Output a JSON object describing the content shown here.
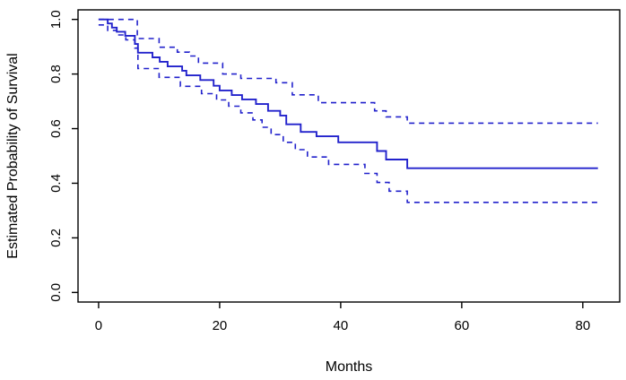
{
  "figure": {
    "background": "#ffffff",
    "line_color": "#2222cc",
    "axis_color": "#000000"
  },
  "chart_data": {
    "type": "line",
    "subtype": "kaplan-meier-step-function",
    "title": "",
    "xlabel": "Months",
    "ylabel": "Estimated Probability of Survival",
    "xlim": [
      -3.4,
      86.1
    ],
    "ylim": [
      -0.035,
      1.035
    ],
    "x_ticks": [
      "0",
      "20",
      "40",
      "60",
      "80"
    ],
    "x_tick_values": [
      0,
      20,
      40,
      60,
      80
    ],
    "y_ticks": [
      "0.0",
      "0.2",
      "0.4",
      "0.6",
      "0.8",
      "1.0"
    ],
    "y_tick_values": [
      0.0,
      0.2,
      0.4,
      0.6,
      0.8,
      1.0
    ],
    "grid": false,
    "legend": null,
    "series": [
      {
        "name": "survival-estimate",
        "style": "solid",
        "color": "#2222cc",
        "points": [
          [
            0,
            1.0
          ],
          [
            1.5,
            0.985
          ],
          [
            2.2,
            0.97
          ],
          [
            3.0,
            0.955
          ],
          [
            4.4,
            0.94
          ],
          [
            6.0,
            0.91
          ],
          [
            6.5,
            0.878
          ],
          [
            8.9,
            0.861
          ],
          [
            10.1,
            0.845
          ],
          [
            11.4,
            0.828
          ],
          [
            13.8,
            0.812
          ],
          [
            14.5,
            0.795
          ],
          [
            16.8,
            0.778
          ],
          [
            19.0,
            0.757
          ],
          [
            20.0,
            0.74
          ],
          [
            22.0,
            0.723
          ],
          [
            23.7,
            0.707
          ],
          [
            26.0,
            0.69
          ],
          [
            28.0,
            0.665
          ],
          [
            30.0,
            0.648
          ],
          [
            31.0,
            0.616
          ],
          [
            33.4,
            0.588
          ],
          [
            36.0,
            0.572
          ],
          [
            39.6,
            0.55
          ],
          [
            46.0,
            0.518
          ],
          [
            47.5,
            0.487
          ],
          [
            51.0,
            0.455
          ],
          [
            82.5,
            0.455
          ]
        ]
      },
      {
        "name": "upper-95-confidence-band",
        "style": "dashed",
        "color": "#2222cc",
        "points": [
          [
            0,
            1.0
          ],
          [
            6.4,
            0.93
          ],
          [
            10.0,
            0.898
          ],
          [
            13.0,
            0.88
          ],
          [
            15.0,
            0.866
          ],
          [
            16.5,
            0.84
          ],
          [
            20.5,
            0.8
          ],
          [
            23.5,
            0.784
          ],
          [
            29.3,
            0.768
          ],
          [
            32.0,
            0.724
          ],
          [
            36.3,
            0.695
          ],
          [
            45.6,
            0.665
          ],
          [
            47.5,
            0.643
          ],
          [
            51.0,
            0.62
          ],
          [
            82.5,
            0.62
          ]
        ]
      },
      {
        "name": "lower-95-confidence-band",
        "style": "dashed",
        "color": "#2222cc",
        "points": [
          [
            0,
            0.98
          ],
          [
            1.5,
            0.96
          ],
          [
            3.0,
            0.943
          ],
          [
            4.5,
            0.925
          ],
          [
            6.0,
            0.895
          ],
          [
            6.5,
            0.82
          ],
          [
            10.0,
            0.788
          ],
          [
            13.5,
            0.755
          ],
          [
            17.0,
            0.728
          ],
          [
            19.5,
            0.705
          ],
          [
            21.5,
            0.682
          ],
          [
            23.5,
            0.658
          ],
          [
            25.5,
            0.632
          ],
          [
            27.0,
            0.605
          ],
          [
            28.5,
            0.578
          ],
          [
            30.5,
            0.55
          ],
          [
            32.5,
            0.523
          ],
          [
            34.5,
            0.496
          ],
          [
            38.0,
            0.469
          ],
          [
            44.0,
            0.436
          ],
          [
            46.0,
            0.403
          ],
          [
            48.0,
            0.371
          ],
          [
            51.0,
            0.33
          ],
          [
            82.5,
            0.33
          ]
        ]
      }
    ]
  }
}
